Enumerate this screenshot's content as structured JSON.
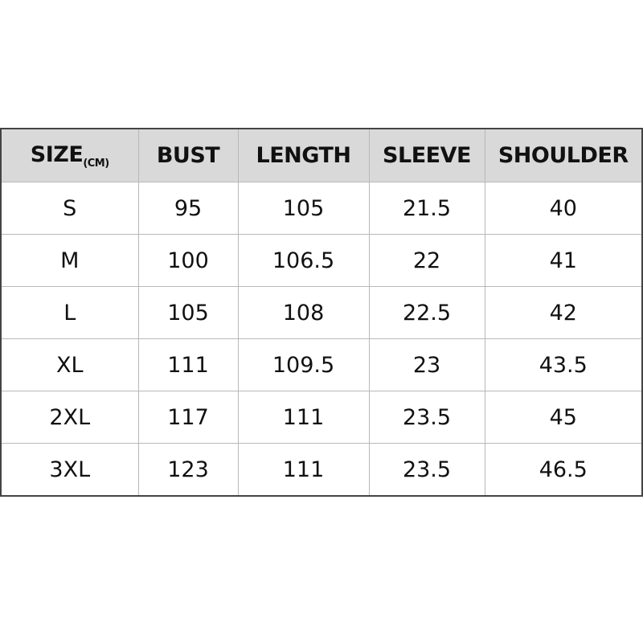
{
  "table": {
    "header": [
      "SIZE",
      "BUST",
      "LENGTH",
      "SLEEVE",
      "SHOULDER"
    ],
    "size_unit": "(CM)",
    "rows": [
      [
        "S",
        "95",
        "105",
        "21.5",
        "40"
      ],
      [
        "M",
        "100",
        "106.5",
        "22",
        "41"
      ],
      [
        "L",
        "105",
        "108",
        "22.5",
        "42"
      ],
      [
        "XL",
        "111",
        "109.5",
        "23",
        "43.5"
      ],
      [
        "2XL",
        "117",
        "111",
        "23.5",
        "45"
      ],
      [
        "3XL",
        "123",
        "111",
        "23.5",
        "46.5"
      ]
    ]
  }
}
